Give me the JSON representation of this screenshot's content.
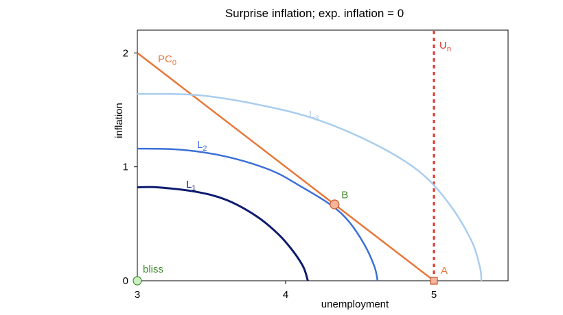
{
  "chart_data": {
    "type": "line",
    "title": "Surprise inflation; exp. inflation = 0",
    "xlabel": "unemployment",
    "ylabel": "inflation",
    "xlim": [
      3,
      5.5
    ],
    "ylim": [
      0,
      2.2
    ],
    "x_ticks": [
      "3",
      "4",
      "5"
    ],
    "y_ticks": [
      "0",
      "1",
      "2"
    ],
    "grid": false,
    "colors": {
      "pc": "#e8773a",
      "un": "#e0352b",
      "l1": "#0d1a6e",
      "l2": "#3a6fd8",
      "l3": "#a9cdef",
      "green": "#3f8a2e",
      "a_label": "#e8773a"
    },
    "series": [
      {
        "name": "PC",
        "subscript": "0",
        "kind": "line",
        "x": [
          3,
          5
        ],
        "y": [
          2,
          0
        ]
      },
      {
        "name": "U",
        "subscript": "n",
        "kind": "vertical-dashed",
        "x": [
          5,
          5
        ],
        "y": [
          0,
          2.2
        ]
      },
      {
        "name": "L",
        "subscript": "1",
        "kind": "curve",
        "x": [
          3,
          3.14,
          3.4,
          3.6,
          3.8,
          3.95,
          4.05,
          4.12,
          4.15
        ],
        "y": [
          0.82,
          0.82,
          0.78,
          0.71,
          0.57,
          0.41,
          0.26,
          0.12,
          0
        ]
      },
      {
        "name": "L",
        "subscript": "2",
        "kind": "curve",
        "x": [
          3,
          3.3,
          3.6,
          3.9,
          4.1,
          4.3,
          4.42,
          4.53,
          4.6,
          4.62
        ],
        "y": [
          1.16,
          1.15,
          1.09,
          0.97,
          0.83,
          0.67,
          0.53,
          0.32,
          0.12,
          0
        ]
      },
      {
        "name": "L",
        "subscript": "3",
        "kind": "curve",
        "x": [
          3,
          3.4,
          3.8,
          4.2,
          4.6,
          4.9,
          5.1,
          5.25,
          5.31,
          5.32
        ],
        "y": [
          1.64,
          1.63,
          1.55,
          1.42,
          1.2,
          0.96,
          0.68,
          0.36,
          0.12,
          0
        ]
      }
    ],
    "points": [
      {
        "label": "bliss",
        "x": 3,
        "y": 0,
        "marker": "circle",
        "fill": "#c9f0c0",
        "stroke": "#3f8a2e",
        "label_color": "#3f8a2e"
      },
      {
        "label": "B",
        "x": 4.33,
        "y": 0.67,
        "marker": "circle",
        "fill": "#f6b59a",
        "stroke": "#c2552a",
        "label_color": "#3f8a2e"
      },
      {
        "label": "A",
        "x": 5,
        "y": 0,
        "marker": "square",
        "fill": "#f6b59a",
        "stroke": "#c2552a",
        "label_color": "#e8773a"
      }
    ]
  }
}
